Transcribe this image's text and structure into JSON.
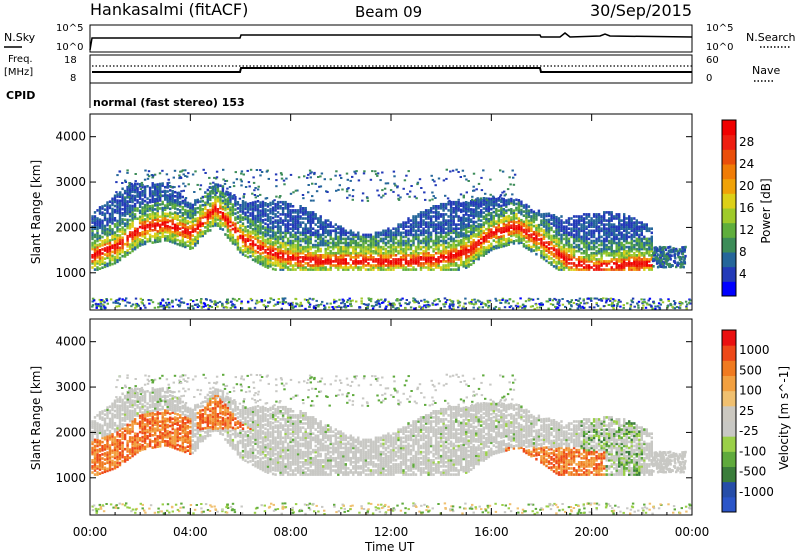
{
  "header": {
    "station": "Hankasalmi (fitACF)",
    "beam": "Beam 09",
    "date": "30/Sep/2015"
  },
  "status_panels": {
    "nsky_label": "N.Sky",
    "nsky_ticks": [
      "10^5",
      "10^0"
    ],
    "nsearch_label": "N.Search",
    "nsearch_ticks": [
      "10^5",
      "10^0"
    ],
    "freq_label_1": "Freq.",
    "freq_label_2": "[MHz]",
    "freq_ticks": [
      "18",
      "8"
    ],
    "nave_label": "Nave",
    "nave_ticks": [
      "60",
      "0"
    ],
    "cpid_label": "CPID",
    "cpid_text": "normal (fast stereo) 153"
  },
  "chart_data": [
    {
      "type": "heatmap",
      "name": "Power",
      "ylabel": "Slant Range [km]",
      "yticks": [
        "4000",
        "3000",
        "2000",
        "1000"
      ],
      "ylim": [
        180,
        4500
      ],
      "xlim": [
        0,
        24
      ],
      "colorbar": {
        "label": "Power [dB]",
        "ticks": [
          "28",
          "24",
          "20",
          "16",
          "12",
          "8",
          "4"
        ],
        "colors": [
          "#0000ff",
          "#233ab8",
          "#25669a",
          "#3c8c58",
          "#5fae3c",
          "#9fca2a",
          "#ddd018",
          "#f0a208",
          "#f07c06",
          "#ea4e0a",
          "#ee1e10",
          "#f00000"
        ]
      },
      "main_echo_band": {
        "time_h": [
          0,
          1,
          2,
          3,
          4,
          5,
          6,
          7,
          8,
          9,
          10,
          11,
          12,
          13,
          14,
          15,
          16,
          17,
          18,
          19,
          20,
          21,
          22
        ],
        "range_km": [
          1400,
          1600,
          2000,
          2100,
          1900,
          2450,
          1800,
          1500,
          1350,
          1300,
          1300,
          1300,
          1300,
          1300,
          1350,
          1500,
          1900,
          2050,
          1700,
          1300,
          1150,
          1200,
          1250
        ]
      }
    },
    {
      "type": "heatmap",
      "name": "Velocity",
      "ylabel": "Slant Range [km]",
      "yticks": [
        "4000",
        "3000",
        "2000",
        "1000"
      ],
      "ylim": [
        180,
        4500
      ],
      "xlim": [
        0,
        24
      ],
      "colorbar": {
        "label": "Velocity [m s^-1]",
        "ticks": [
          "1000",
          "500",
          "100",
          "25",
          "-25",
          "-100",
          "-500",
          "-1000"
        ],
        "colors": [
          "#2b55c8",
          "#264da8",
          "#3a7d3a",
          "#5faa3c",
          "#9ad048",
          "#c8c8c4",
          "#cbc8c0",
          "#f0c070",
          "#f2a040",
          "#f07a20",
          "#ee4818",
          "#ea1010"
        ]
      }
    }
  ],
  "x_axis": {
    "ticks": [
      "00:00",
      "04:00",
      "08:00",
      "12:00",
      "16:00",
      "20:00",
      "00:00"
    ],
    "label": "Time UT"
  }
}
